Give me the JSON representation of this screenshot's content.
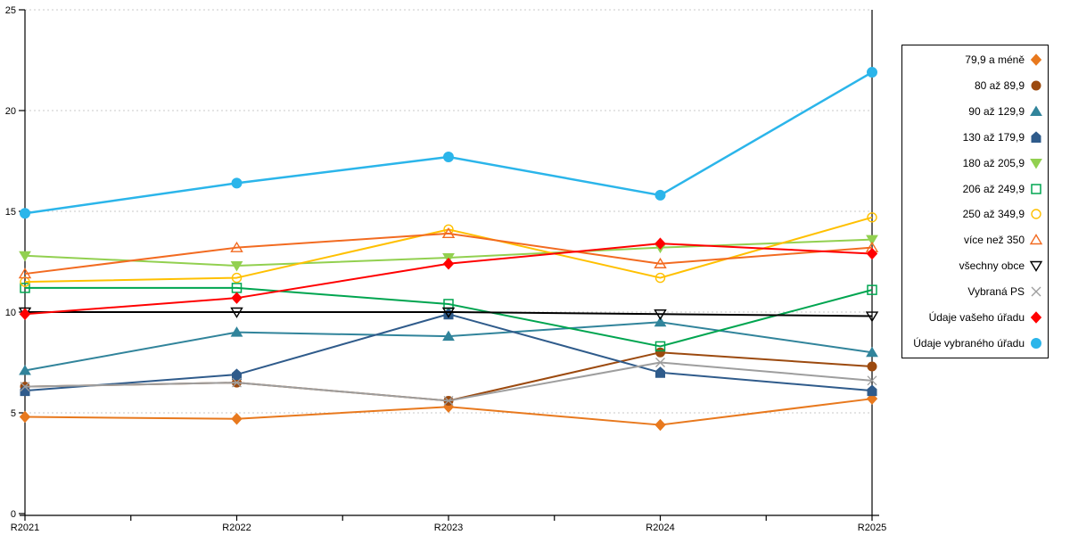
{
  "chart_data": {
    "type": "line",
    "categories": [
      "R2021",
      "R2022",
      "R2023",
      "R2024",
      "R2025"
    ],
    "series": [
      {
        "name": "79,9 a méně",
        "marker": "diamond",
        "filled": true,
        "color": "#E8791E",
        "values": [
          4.8,
          4.7,
          5.3,
          4.4,
          5.7
        ]
      },
      {
        "name": "80 až 89,9",
        "marker": "circle",
        "filled": true,
        "color": "#9C4A0F",
        "values": [
          6.3,
          6.5,
          5.6,
          8.0,
          7.3
        ]
      },
      {
        "name": "90 až 129,9",
        "marker": "triangle-up",
        "filled": true,
        "color": "#31849B",
        "values": [
          7.1,
          9.0,
          8.8,
          9.5,
          8.0
        ]
      },
      {
        "name": "130 až 179,9",
        "marker": "pentagon",
        "filled": true,
        "color": "#2F5B8B",
        "values": [
          6.1,
          6.9,
          9.9,
          7.0,
          6.1
        ]
      },
      {
        "name": "180 až 205,9",
        "marker": "triangle-down",
        "filled": true,
        "color": "#92D050",
        "values": [
          12.8,
          12.3,
          12.7,
          13.2,
          13.6
        ]
      },
      {
        "name": "206 až 249,9",
        "marker": "square",
        "filled": false,
        "color": "#00A550",
        "values": [
          11.2,
          11.2,
          10.4,
          8.3,
          11.1
        ]
      },
      {
        "name": "250 až 349,9",
        "marker": "circle",
        "filled": false,
        "color": "#FFC000",
        "values": [
          11.5,
          11.7,
          14.1,
          11.7,
          14.7
        ]
      },
      {
        "name": "více než 350",
        "marker": "triangle-up",
        "filled": false,
        "color": "#F26B21",
        "values": [
          11.9,
          13.2,
          13.9,
          12.4,
          13.2
        ]
      },
      {
        "name": "všechny obce",
        "marker": "triangle-down",
        "filled": false,
        "color": "#000000",
        "values": [
          10.0,
          10.0,
          10.0,
          9.9,
          9.8
        ]
      },
      {
        "name": "Vybraná PS",
        "marker": "x",
        "filled": false,
        "color": "#9E9E9E",
        "values": [
          6.3,
          6.5,
          5.6,
          7.5,
          6.6
        ]
      },
      {
        "name": "Údaje vašeho úřadu",
        "marker": "diamond",
        "filled": true,
        "color": "#FF0000",
        "values": [
          9.9,
          10.7,
          12.4,
          13.4,
          12.9
        ]
      },
      {
        "name": "Údaje vybraného úřadu",
        "marker": "circle",
        "filled": true,
        "color": "#2BB5EA",
        "values": [
          14.9,
          16.4,
          17.7,
          15.8,
          21.9
        ]
      }
    ],
    "title": "",
    "xlabel": "",
    "ylabel": "",
    "ylim": [
      0,
      25
    ],
    "ytick_step": 5,
    "grid": "horizontal-dashed",
    "grid_color": "#C8C8C8",
    "axis_color": "#000000",
    "legend_position": "right"
  }
}
